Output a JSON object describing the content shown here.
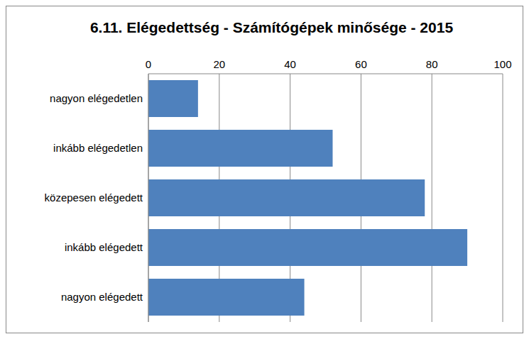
{
  "chart_data": {
    "type": "bar",
    "title": "6.11.  Elégedettség - Számítógépek minősége - 2015",
    "orientation": "horizontal",
    "categories": [
      "nagyon elégedetlen",
      "inkább elégedetlen",
      "közepesen elégedett",
      "inkább elégedett",
      "nagyon elégedett"
    ],
    "values": [
      14,
      52,
      78,
      90,
      44
    ],
    "color": "#4f81bd",
    "xlim": [
      0,
      100
    ],
    "xticks": [
      0,
      20,
      40,
      60,
      80,
      100
    ],
    "grid": true
  }
}
